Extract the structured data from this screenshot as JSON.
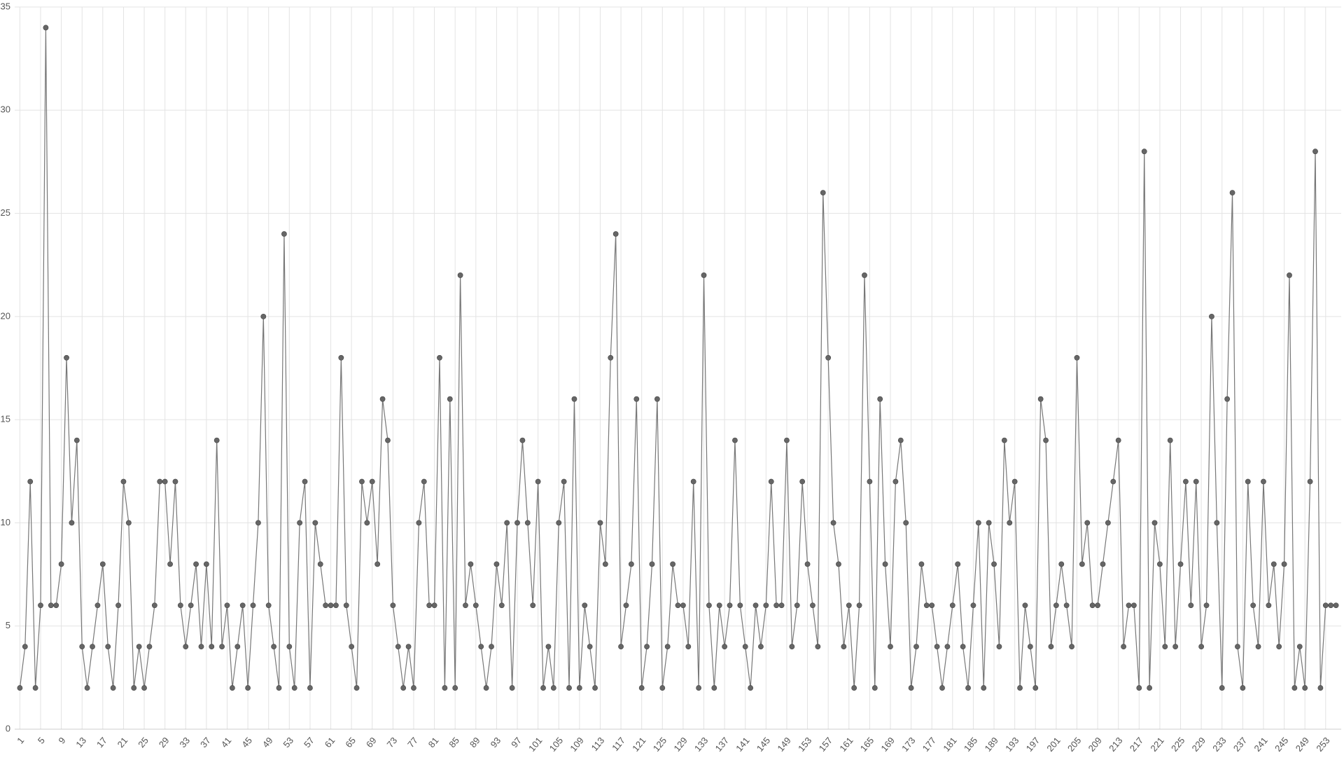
{
  "chart_data": {
    "type": "line",
    "x": [
      1,
      2,
      3,
      4,
      5,
      6,
      7,
      8,
      9,
      10,
      11,
      12,
      13,
      14,
      15,
      16,
      17,
      18,
      19,
      20,
      21,
      22,
      23,
      24,
      25,
      26,
      27,
      28,
      29,
      30,
      31,
      32,
      33,
      34,
      35,
      36,
      37,
      38,
      39,
      40,
      41,
      42,
      43,
      44,
      45,
      46,
      47,
      48,
      49,
      50,
      51,
      52,
      53,
      54,
      55,
      56,
      57,
      58,
      59,
      60,
      61,
      62,
      63,
      64,
      65,
      66,
      67,
      68,
      69,
      70,
      71,
      72,
      73,
      74,
      75,
      76,
      77,
      78,
      79,
      80,
      81,
      82,
      83,
      84,
      85,
      86,
      87,
      88,
      89,
      90,
      91,
      92,
      93,
      94,
      95,
      96,
      97,
      98,
      99,
      100,
      101,
      102,
      103,
      104,
      105,
      106,
      107,
      108,
      109,
      110,
      111,
      112,
      113,
      114,
      115,
      116,
      117,
      118,
      119,
      120,
      121,
      122,
      123,
      124,
      125,
      126,
      127,
      128,
      129,
      130,
      131,
      132,
      133,
      134,
      135,
      136,
      137,
      138,
      139,
      140,
      141,
      142,
      143,
      144,
      145,
      146,
      147,
      148,
      149,
      150,
      151,
      152,
      153,
      154,
      155,
      156,
      157,
      158,
      159,
      160,
      161,
      162,
      163,
      164,
      165,
      166,
      167,
      168,
      169,
      170,
      171,
      172,
      173,
      174,
      175,
      176,
      177,
      178,
      179,
      180,
      181,
      182,
      183,
      184,
      185,
      186,
      187,
      188,
      189,
      190,
      191,
      192,
      193,
      194,
      195,
      196,
      197,
      198,
      199,
      200,
      201,
      202,
      203,
      204,
      205,
      206,
      207,
      208,
      209,
      210,
      211,
      212,
      213,
      214,
      215,
      216,
      217,
      218,
      219,
      220,
      221,
      222,
      223,
      224,
      225,
      226,
      227,
      228,
      229,
      230,
      231,
      232,
      233,
      234,
      235,
      236,
      237,
      238,
      239,
      240,
      241,
      242,
      243,
      244,
      245,
      246,
      247,
      248,
      249,
      250,
      251,
      252,
      253,
      254,
      255
    ],
    "values": [
      2,
      4,
      12,
      2,
      6,
      34,
      6,
      6,
      8,
      18,
      10,
      14,
      4,
      2,
      4,
      6,
      8,
      4,
      2,
      6,
      12,
      10,
      2,
      4,
      2,
      4,
      6,
      12,
      12,
      8,
      12,
      6,
      4,
      6,
      8,
      4,
      8,
      4,
      14,
      4,
      6,
      2,
      4,
      6,
      2,
      6,
      10,
      20,
      6,
      4,
      2,
      24,
      4,
      2,
      10,
      12,
      2,
      10,
      8,
      6,
      6,
      6,
      18,
      6,
      4,
      2,
      12,
      10,
      12,
      8,
      16,
      14,
      6,
      4,
      2,
      4,
      2,
      10,
      12,
      6,
      6,
      18,
      2,
      16,
      2,
      22,
      6,
      8,
      6,
      4,
      2,
      4,
      8,
      6,
      10,
      2,
      10,
      14,
      10,
      6,
      12,
      2,
      4,
      2,
      10,
      12,
      2,
      16,
      2,
      6,
      4,
      2,
      10,
      8,
      18,
      24,
      4,
      6,
      8,
      16,
      2,
      4,
      8,
      16,
      2,
      4,
      8,
      6,
      6,
      4,
      12,
      2,
      22,
      6,
      2,
      6,
      4,
      6,
      14,
      6,
      4,
      2,
      6,
      4,
      6,
      12,
      6,
      6,
      14,
      4,
      6,
      12,
      8,
      6,
      4,
      26,
      18,
      10,
      8,
      4,
      6,
      2,
      6,
      22,
      12,
      2,
      16,
      8,
      4,
      12,
      14,
      10,
      2,
      4,
      8,
      6,
      6,
      4,
      2,
      4,
      6,
      8,
      4,
      2,
      6,
      10,
      2,
      10,
      8,
      4,
      14,
      10,
      12,
      2,
      6,
      4,
      2,
      16,
      14,
      4,
      6,
      8,
      6,
      4,
      18,
      8,
      10,
      6,
      6,
      8,
      10,
      12,
      14,
      4,
      6,
      6,
      2,
      28,
      2,
      10,
      8,
      4,
      14,
      4,
      8,
      12,
      6,
      12,
      4,
      6,
      20,
      10,
      2,
      16,
      26,
      4,
      2,
      12,
      6,
      4,
      12,
      6,
      8,
      4,
      8,
      22,
      2,
      4,
      2,
      12,
      28,
      2,
      6,
      6,
      6
    ],
    "color": "#777777",
    "xlim": [
      0,
      256
    ],
    "xticks": [
      1,
      5,
      9,
      13,
      17,
      21,
      25,
      29,
      33,
      37,
      41,
      45,
      49,
      53,
      57,
      61,
      65,
      69,
      73,
      77,
      81,
      85,
      89,
      93,
      97,
      101,
      105,
      109,
      113,
      117,
      121,
      125,
      129,
      133,
      137,
      141,
      145,
      149,
      153,
      157,
      161,
      165,
      169,
      173,
      177,
      181,
      185,
      189,
      193,
      197,
      201,
      205,
      209,
      213,
      217,
      221,
      225,
      229,
      233,
      237,
      241,
      245,
      249,
      253
    ],
    "ylim": [
      0,
      35
    ],
    "yticks": [
      0,
      5,
      10,
      15,
      20,
      25,
      30,
      35
    ],
    "grid": true
  }
}
